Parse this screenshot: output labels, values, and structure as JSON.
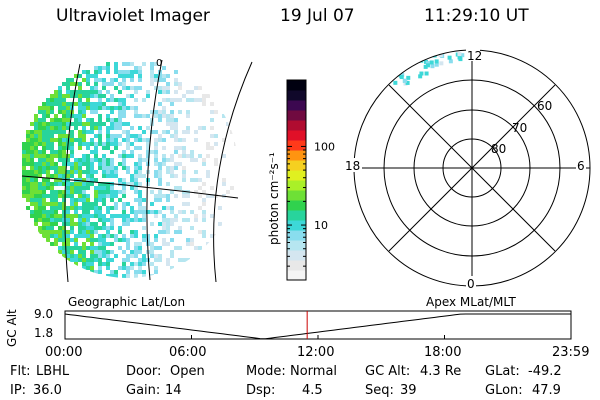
{
  "header": {
    "title": "Ultraviolet Imager",
    "date": "19 Jul 07",
    "time": "11:29:10 UT"
  },
  "colorbar": {
    "label": "photon cm⁻²s⁻¹",
    "tick_labels": [
      "100",
      "10"
    ],
    "ticks": [
      100,
      10
    ],
    "range": [
      2,
      700
    ],
    "colors": [
      "#f5f5f5",
      "#e8e8e8",
      "#d4e6f0",
      "#b6e6f0",
      "#89ddee",
      "#3dd8d8",
      "#28d49c",
      "#30d24e",
      "#6ee036",
      "#aaf028",
      "#e0f020",
      "#f5d020",
      "#ff9410",
      "#ff3a1a",
      "#e01028",
      "#b00c30",
      "#700a40",
      "#3c0850",
      "#10082a",
      "#000010"
    ]
  },
  "geo_map": {
    "lon_label_visible": "0"
  },
  "polar_plot": {
    "mlt_labels": {
      "top": "12",
      "left": "18",
      "right": "6",
      "bottom": "0"
    },
    "lat_labels": [
      "60",
      "70",
      "80"
    ]
  },
  "altitude_panel": {
    "label": "GC Alt",
    "y_ticks": [
      "9.0",
      "1.8"
    ],
    "left_caption": "Geographic Lat/Lon",
    "right_caption": "Apex MLat/MLT",
    "x_ticks": [
      "00:00",
      "06:00",
      "12:00",
      "18:00",
      "23:59"
    ],
    "current_time_marker": "11:29:10",
    "marker_color": "#cc0000"
  },
  "status": {
    "row1": [
      {
        "label": "Flt:",
        "value": "LBHL"
      },
      {
        "label": "Door:",
        "value": "Open"
      },
      {
        "label": "Mode:",
        "value": "Normal"
      },
      {
        "label": "GC Alt:",
        "value": "4.3 Re"
      },
      {
        "label": "GLat:",
        "value": "-49.2"
      }
    ],
    "row2": [
      {
        "label": "IP:",
        "value": "36.0"
      },
      {
        "label": "Gain:",
        "value": "14"
      },
      {
        "label": "Dsp:",
        "value": "4.5"
      },
      {
        "label": "Seq:",
        "value": "39"
      },
      {
        "label": "GLon:",
        "value": "47.9"
      }
    ]
  }
}
